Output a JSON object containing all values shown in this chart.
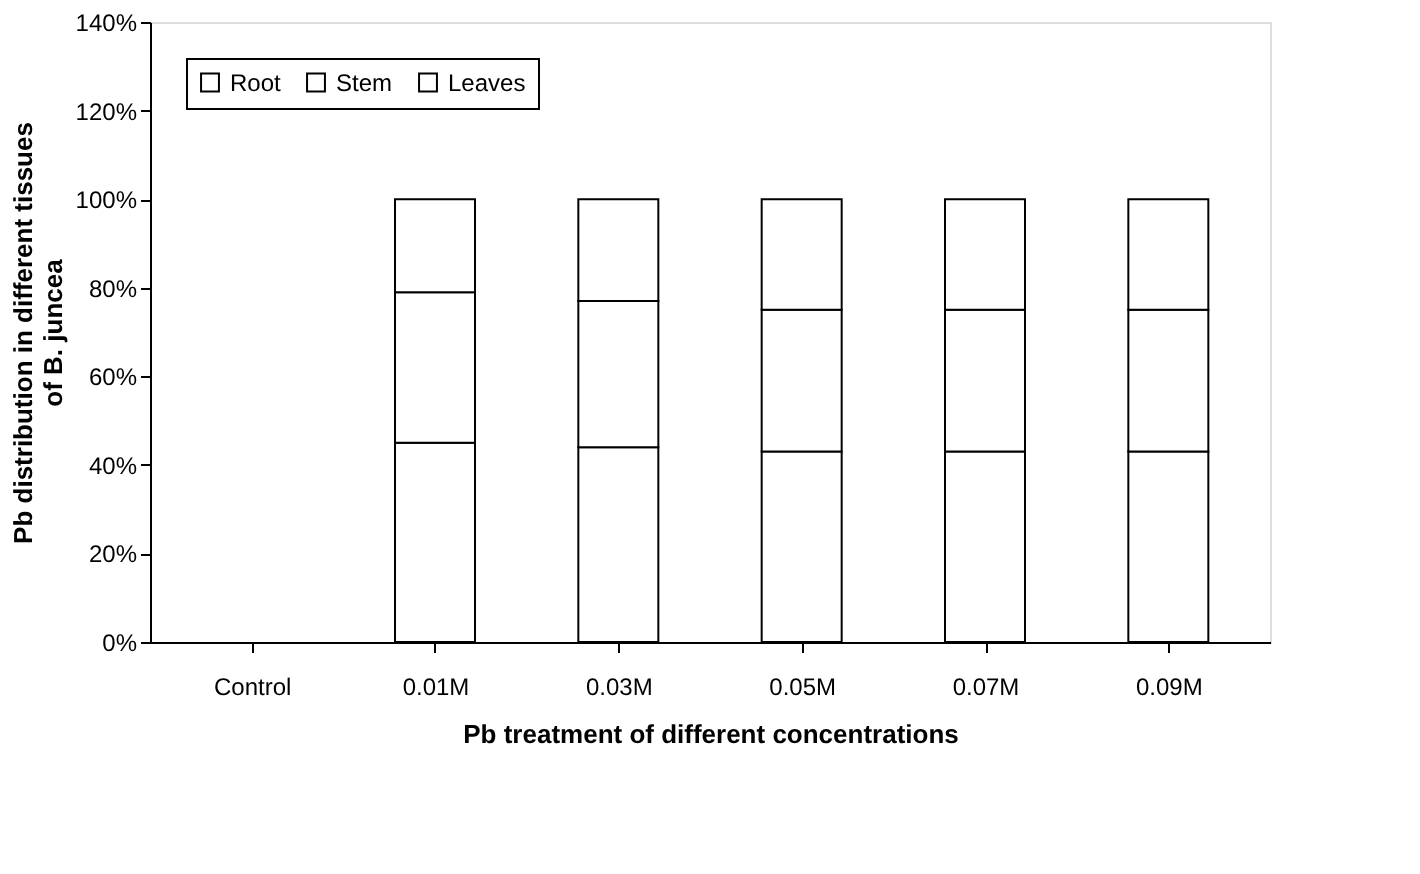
{
  "chart_data": {
    "type": "bar",
    "stacked": true,
    "xlabel": "Pb treatment of different concentrations",
    "ylabel": "Pb distribution in different tissues\nof B. juncea",
    "categories": [
      "Control",
      "0.01M",
      "0.03M",
      "0.05M",
      "0.07M",
      "0.09M"
    ],
    "series": [
      {
        "name": "Root",
        "color": "#ffffff",
        "values": [
          null,
          45,
          44,
          43,
          43,
          43
        ]
      },
      {
        "name": "Stem",
        "color": "#ffffff",
        "values": [
          null,
          34,
          33,
          32,
          32,
          32
        ]
      },
      {
        "name": "Leaves",
        "color": "#ffffff",
        "values": [
          null,
          21,
          23,
          25,
          25,
          25
        ]
      }
    ],
    "ylim": [
      0,
      140
    ],
    "yticks": [
      {
        "value": 0,
        "label": "0%"
      },
      {
        "value": 20,
        "label": "20%"
      },
      {
        "value": 40,
        "label": "40%"
      },
      {
        "value": 60,
        "label": "60%"
      },
      {
        "value": 80,
        "label": "80%"
      },
      {
        "value": 100,
        "label": "100%"
      },
      {
        "value": 120,
        "label": "120%"
      },
      {
        "value": 140,
        "label": "140%"
      }
    ],
    "legend": "top left",
    "grid": false
  }
}
